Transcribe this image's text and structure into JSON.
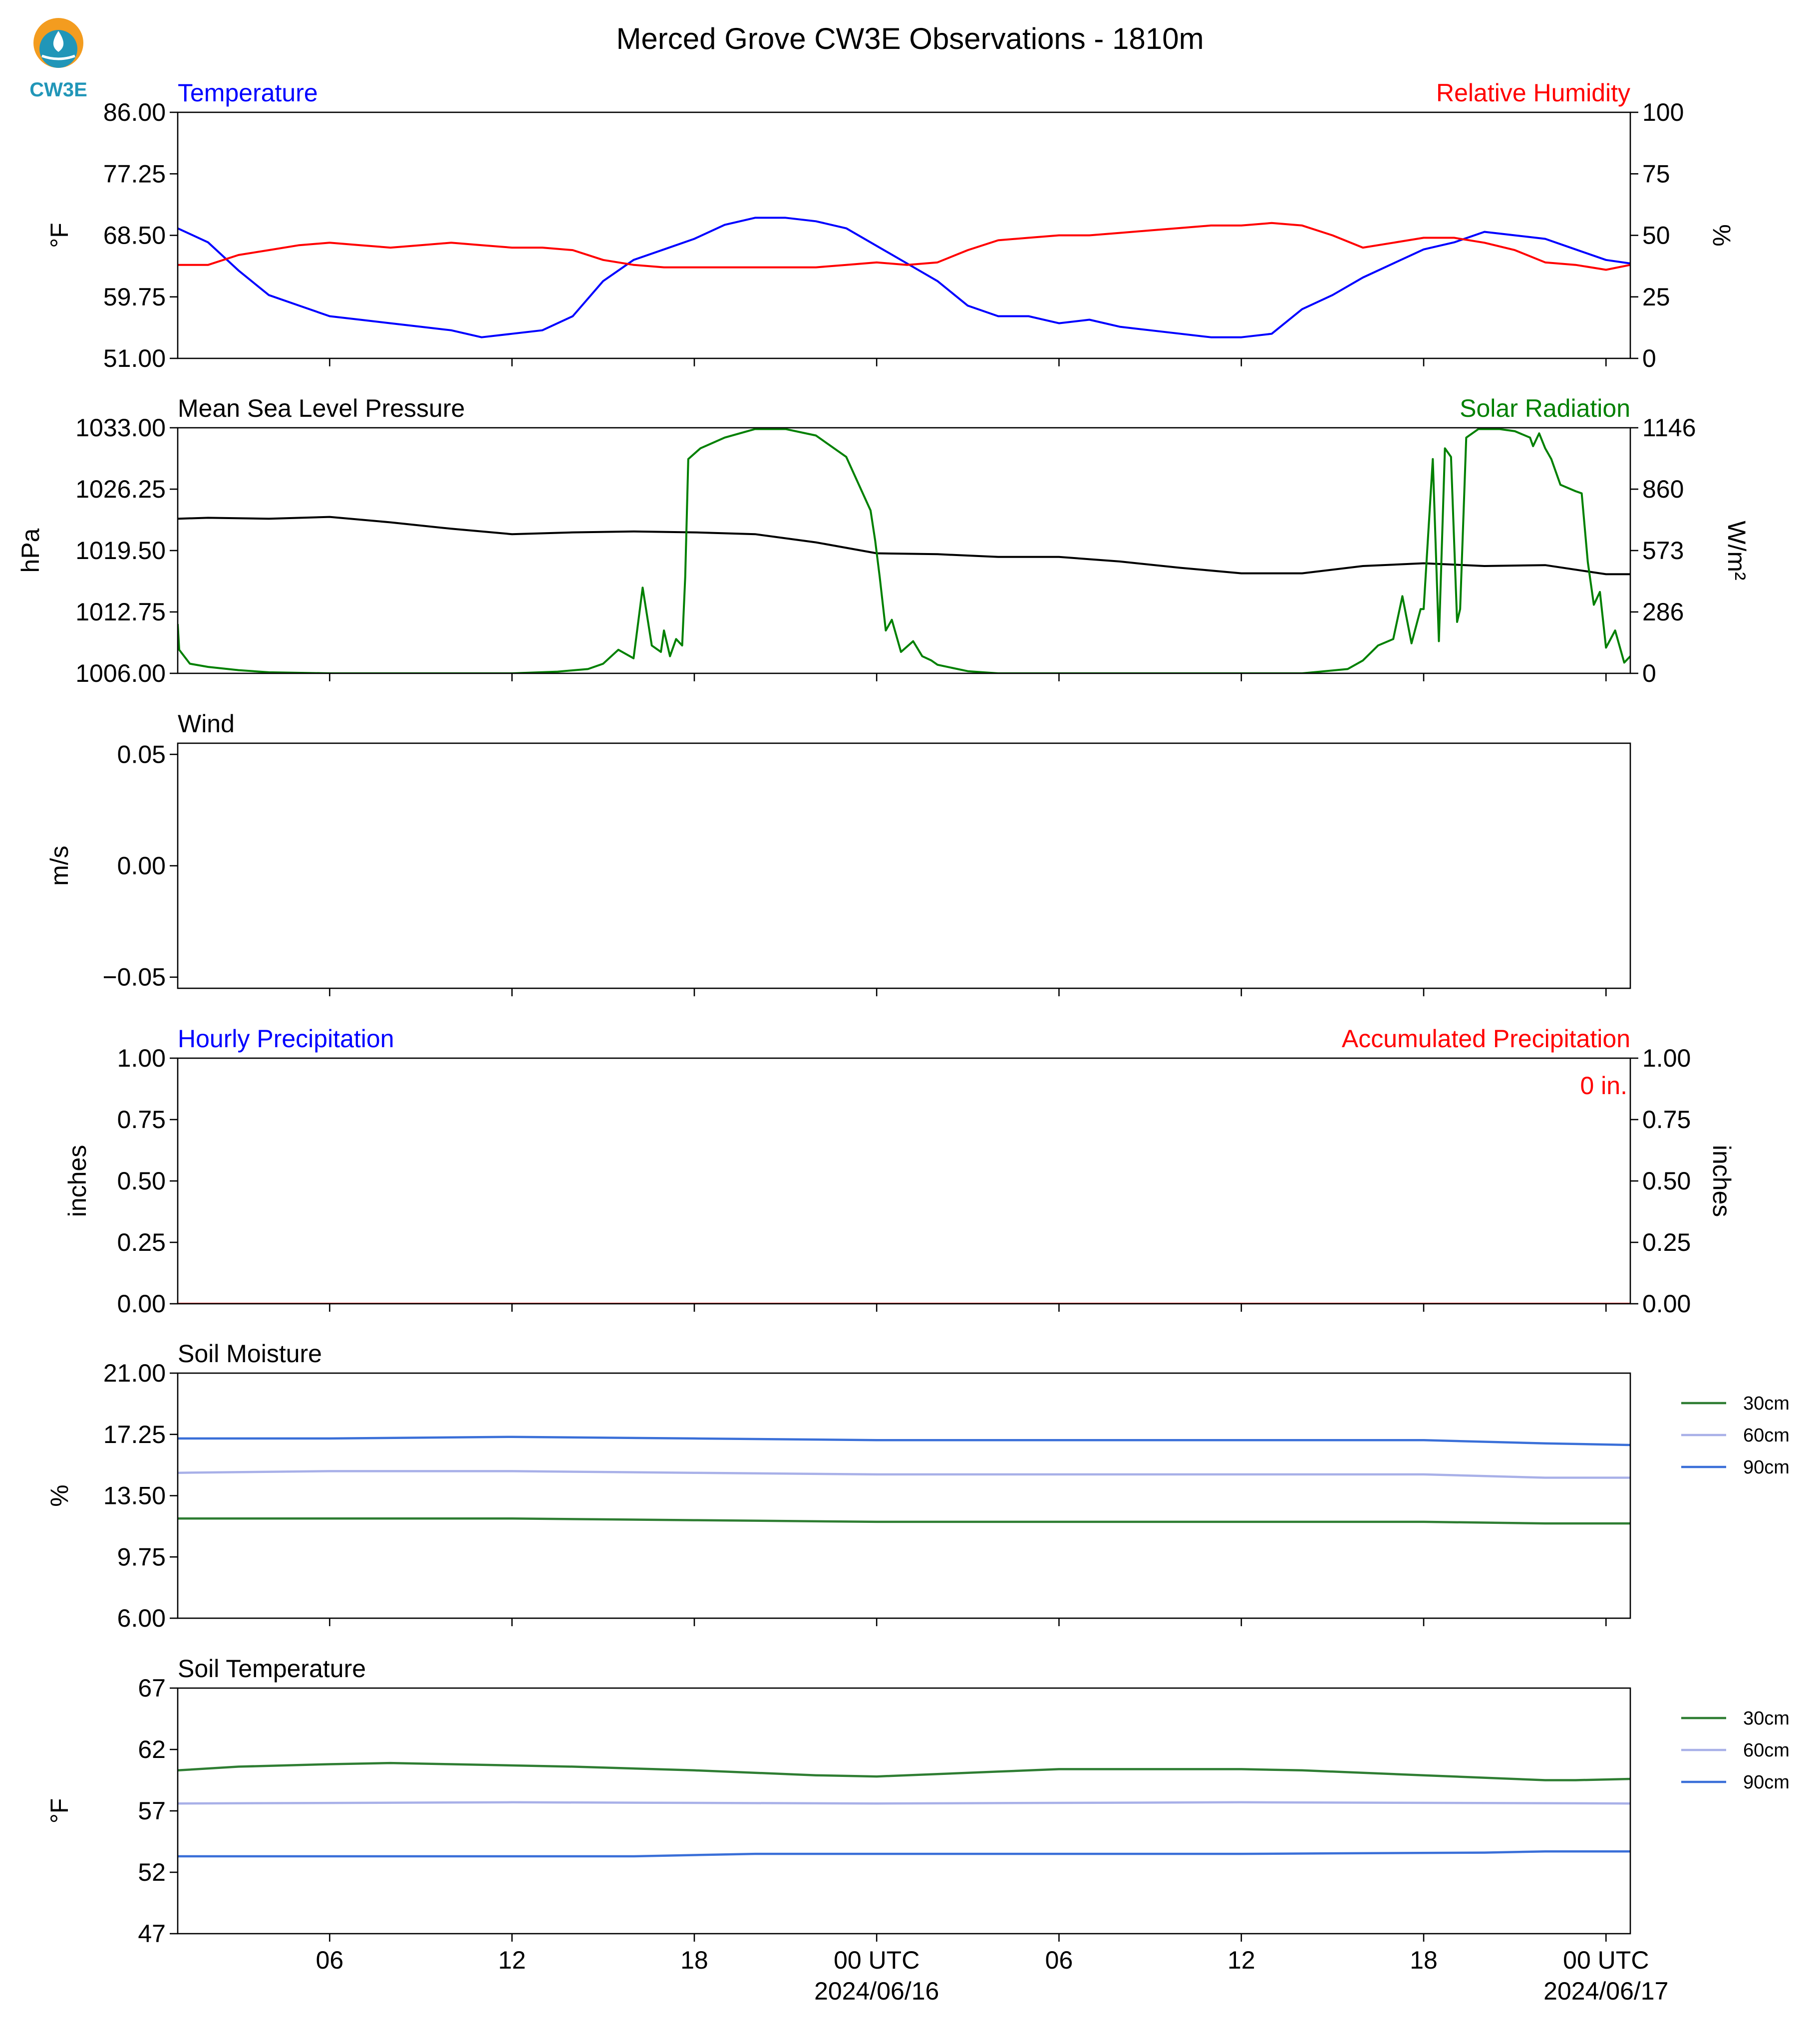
{
  "page": {
    "title": "Merced Grove CW3E Observations - 1810m",
    "logo_text": "CW3E"
  },
  "colors": {
    "temperature": "#0000ff",
    "humidity": "#ff0000",
    "pressure": "#000000",
    "solar": "#008000",
    "soil_30cm": "#2e7d32",
    "soil_60cm": "#a8b0e8",
    "soil_90cm": "#3a6fd8",
    "logo_orange": "#f39c1f",
    "logo_teal": "#2196b8"
  },
  "time_axis": {
    "start_hour": 1,
    "end_hour": 48.8,
    "ticks": [
      {
        "hour": 6,
        "label": "06",
        "sub": ""
      },
      {
        "hour": 12,
        "label": "12",
        "sub": ""
      },
      {
        "hour": 18,
        "label": "18",
        "sub": ""
      },
      {
        "hour": 24,
        "label": "00 UTC",
        "sub": "2024/06/16"
      },
      {
        "hour": 30,
        "label": "06",
        "sub": ""
      },
      {
        "hour": 36,
        "label": "12",
        "sub": ""
      },
      {
        "hour": 42,
        "label": "18",
        "sub": ""
      },
      {
        "hour": 48,
        "label": "00 UTC",
        "sub": "2024/06/17"
      }
    ]
  },
  "chart_data": [
    {
      "type": "line",
      "title_left": "Temperature",
      "title_right": "Relative Humidity",
      "ylabel": "°F",
      "ylabel_right": "%",
      "ylim": [
        51.0,
        86.0
      ],
      "yticks": [
        "86.00",
        "77.25",
        "68.50",
        "59.75",
        "51.00"
      ],
      "ylim_right": [
        0,
        100
      ],
      "yticks_right": [
        "100",
        "75",
        "50",
        "25",
        "0"
      ],
      "series": [
        {
          "key": "temperature",
          "axis": "left",
          "x": [
            1,
            2,
            3,
            4,
            5,
            6,
            7,
            8,
            9,
            10,
            11,
            12,
            13,
            14,
            15,
            16,
            17,
            18,
            19,
            20,
            21,
            22,
            23,
            24,
            25,
            26,
            27,
            28,
            29,
            30,
            31,
            32,
            33,
            34,
            35,
            36,
            37,
            38,
            39,
            40,
            41,
            42,
            43,
            44,
            45,
            46,
            47,
            48,
            48.8
          ],
          "y": [
            69.5,
            67.5,
            63.5,
            60.0,
            58.5,
            57.0,
            56.5,
            56.0,
            55.5,
            55.0,
            54.0,
            54.5,
            55.0,
            57.0,
            62.0,
            65.0,
            66.5,
            68.0,
            70.0,
            71.0,
            71.0,
            70.5,
            69.5,
            67.0,
            64.5,
            62.0,
            58.5,
            57.0,
            57.0,
            56.0,
            56.5,
            55.5,
            55.0,
            54.5,
            54.0,
            54.0,
            54.5,
            58.0,
            60.0,
            62.5,
            64.5,
            66.5,
            67.5,
            69.0,
            68.5,
            68.0,
            66.5,
            65.0,
            64.5
          ]
        },
        {
          "key": "humidity",
          "axis": "right",
          "x": [
            1,
            2,
            3,
            4,
            5,
            6,
            7,
            8,
            9,
            10,
            11,
            12,
            13,
            14,
            15,
            16,
            17,
            18,
            19,
            20,
            21,
            22,
            23,
            24,
            25,
            26,
            27,
            28,
            29,
            30,
            31,
            32,
            33,
            34,
            35,
            36,
            37,
            38,
            39,
            40,
            41,
            42,
            43,
            44,
            45,
            46,
            47,
            48,
            48.8
          ],
          "y": [
            38,
            38,
            42,
            44,
            46,
            47,
            46,
            45,
            46,
            47,
            46,
            45,
            45,
            44,
            40,
            38,
            37,
            37,
            37,
            37,
            37,
            37,
            38,
            39,
            38,
            39,
            44,
            48,
            49,
            50,
            50,
            51,
            52,
            53,
            54,
            54,
            55,
            54,
            50,
            45,
            47,
            49,
            49,
            47,
            44,
            39,
            38,
            36,
            38
          ]
        }
      ]
    },
    {
      "type": "line",
      "title_left": "Mean Sea Level Pressure",
      "title_right": "Solar Radiation",
      "ylabel": "hPa",
      "ylabel_right": "W/m²",
      "ylim": [
        1006.0,
        1033.0
      ],
      "yticks": [
        "1033.00",
        "1026.25",
        "1019.50",
        "1012.75",
        "1006.00"
      ],
      "ylim_right": [
        0,
        1146
      ],
      "yticks_right": [
        "1146",
        "860",
        "573",
        "286",
        "0"
      ],
      "series": [
        {
          "key": "pressure",
          "axis": "left",
          "x": [
            1,
            2,
            4,
            6,
            8,
            10,
            12,
            14,
            16,
            18,
            20,
            22,
            24,
            26,
            28,
            30,
            32,
            34,
            36,
            38,
            40,
            42,
            44,
            46,
            47,
            48,
            48.8
          ],
          "y": [
            1023.0,
            1023.1,
            1023.0,
            1023.2,
            1022.6,
            1021.9,
            1021.3,
            1021.5,
            1021.6,
            1021.5,
            1021.3,
            1020.4,
            1019.2,
            1019.1,
            1018.8,
            1018.8,
            1018.3,
            1017.6,
            1017.0,
            1017.0,
            1017.8,
            1018.1,
            1017.8,
            1017.9,
            1017.4,
            1016.9,
            1016.9
          ]
        },
        {
          "key": "solar",
          "axis": "right",
          "x": [
            1,
            1.05,
            1.4,
            2,
            3,
            4,
            6,
            8,
            10,
            12,
            13.5,
            14.5,
            15,
            15.5,
            16,
            16.3,
            16.6,
            16.9,
            17.0,
            17.2,
            17.4,
            17.6,
            17.7,
            17.8,
            18.2,
            19,
            20,
            21,
            22,
            23,
            23.8,
            23.95,
            24.1,
            24.3,
            24.5,
            24.8,
            25.2,
            25.5,
            25.8,
            26,
            27,
            28,
            30,
            32,
            34,
            36,
            38,
            39.5,
            40,
            40.5,
            41,
            41.3,
            41.6,
            41.9,
            42.0,
            42.3,
            42.5,
            42.7,
            42.9,
            43.1,
            43.2,
            43.4,
            43.6,
            43.8,
            44,
            44.5,
            45,
            45.5,
            45.6,
            45.8,
            46.0,
            46.2,
            46.5,
            47,
            47.2,
            47.4,
            47.6,
            47.8,
            48,
            48.3,
            48.6,
            48.8
          ],
          "y": [
            230,
            110,
            45,
            30,
            15,
            5,
            0,
            0,
            0,
            0,
            8,
            20,
            45,
            110,
            70,
            400,
            130,
            100,
            200,
            80,
            160,
            130,
            450,
            1000,
            1050,
            1100,
            1140,
            1140,
            1110,
            1010,
            760,
            620,
            450,
            200,
            250,
            100,
            150,
            80,
            60,
            40,
            10,
            0,
            0,
            0,
            0,
            0,
            0,
            20,
            60,
            130,
            160,
            360,
            140,
            300,
            300,
            1000,
            150,
            1050,
            1010,
            240,
            300,
            1100,
            1120,
            1140,
            1140,
            1140,
            1130,
            1100,
            1060,
            1120,
            1050,
            1000,
            880,
            850,
            840,
            520,
            320,
            380,
            120,
            200,
            50,
            80
          ]
        }
      ]
    },
    {
      "type": "line",
      "title_left": "Wind",
      "title_right": "",
      "ylabel": "m/s",
      "ylim": [
        -0.055,
        0.055
      ],
      "yticks": [
        {
          "v": 0.05,
          "label": "0.05"
        },
        {
          "v": 0.0,
          "label": "0.00"
        },
        {
          "v": -0.05,
          "label": "−0.05"
        }
      ],
      "series": []
    },
    {
      "type": "line",
      "title_left": "Hourly Precipitation",
      "title_right": "Accumulated Precipitation",
      "ylabel": "inches",
      "ylabel_right": "inches",
      "ylim": [
        0,
        1
      ],
      "yticks": [
        "1.00",
        "0.75",
        "0.50",
        "0.25",
        "0.00"
      ],
      "ylim_right": [
        0,
        1
      ],
      "yticks_right": [
        "1.00",
        "0.75",
        "0.50",
        "0.25",
        "0.00"
      ],
      "annotation": "0 in.",
      "series": [
        {
          "key": "precip_hourly",
          "axis": "left",
          "x": [
            1,
            48.8
          ],
          "y": [
            0,
            0
          ]
        },
        {
          "key": "precip_accum",
          "axis": "right",
          "x": [
            1,
            48.8
          ],
          "y": [
            0,
            0
          ]
        }
      ]
    },
    {
      "type": "line",
      "title_left": "Soil Moisture",
      "title_right": "",
      "ylabel": "%",
      "ylim": [
        6.0,
        21.0
      ],
      "yticks": [
        "21.00",
        "17.25",
        "13.50",
        "9.75",
        "6.00"
      ],
      "legend": [
        "30cm",
        "60cm",
        "90cm"
      ],
      "series": [
        {
          "key": "soil_30cm",
          "name": "30cm",
          "x": [
            1,
            6,
            12,
            18,
            24,
            30,
            36,
            42,
            46,
            48.8
          ],
          "y": [
            12.1,
            12.1,
            12.1,
            12.0,
            11.9,
            11.9,
            11.9,
            11.9,
            11.8,
            11.8
          ]
        },
        {
          "key": "soil_60cm",
          "name": "60cm",
          "x": [
            1,
            6,
            12,
            18,
            24,
            30,
            36,
            42,
            46,
            48.8
          ],
          "y": [
            14.9,
            15.0,
            15.0,
            14.9,
            14.8,
            14.8,
            14.8,
            14.8,
            14.6,
            14.6
          ]
        },
        {
          "key": "soil_90cm",
          "name": "90cm",
          "x": [
            1,
            6,
            12,
            18,
            24,
            30,
            36,
            42,
            46,
            48.8
          ],
          "y": [
            17.0,
            17.0,
            17.1,
            17.0,
            16.9,
            16.9,
            16.9,
            16.9,
            16.7,
            16.6
          ]
        }
      ]
    },
    {
      "type": "line",
      "title_left": "Soil Temperature",
      "title_right": "",
      "ylabel": "°F",
      "ylim": [
        47,
        67
      ],
      "yticks": [
        "67",
        "62",
        "57",
        "52",
        "47"
      ],
      "legend": [
        "30cm",
        "60cm",
        "90cm"
      ],
      "series": [
        {
          "key": "soil_30cm",
          "name": "30cm",
          "x": [
            1,
            3,
            6,
            8,
            10,
            14,
            18,
            20,
            22,
            24,
            26,
            28,
            30,
            32,
            36,
            38,
            42,
            44,
            46,
            47,
            48.8
          ],
          "y": [
            60.3,
            60.6,
            60.8,
            60.9,
            60.8,
            60.6,
            60.3,
            60.1,
            59.9,
            59.8,
            60.0,
            60.2,
            60.4,
            60.4,
            60.4,
            60.3,
            59.9,
            59.7,
            59.5,
            59.5,
            59.6
          ]
        },
        {
          "key": "soil_60cm",
          "name": "60cm",
          "x": [
            1,
            12,
            24,
            36,
            48.8
          ],
          "y": [
            57.6,
            57.7,
            57.6,
            57.7,
            57.6
          ]
        },
        {
          "key": "soil_90cm",
          "name": "90cm",
          "x": [
            1,
            12,
            16,
            20,
            24,
            36,
            44,
            46,
            48.8
          ],
          "y": [
            53.3,
            53.3,
            53.3,
            53.5,
            53.5,
            53.5,
            53.6,
            53.7,
            53.7
          ]
        }
      ]
    }
  ]
}
